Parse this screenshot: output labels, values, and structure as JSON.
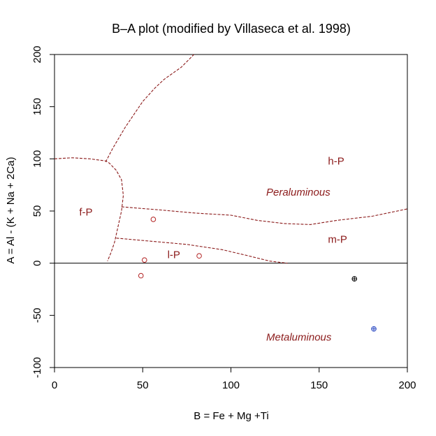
{
  "chart_data": {
    "type": "scatter",
    "title": "B–A plot (modified by Villaseca et al. 1998)",
    "xlabel": "B = Fe + Mg +Ti",
    "ylabel": "A = Al - (K + Na + 2Ca)",
    "xlim": [
      0,
      200
    ],
    "ylim": [
      -100,
      200
    ],
    "xticks": [
      0,
      50,
      100,
      150,
      200
    ],
    "yticks": [
      -100,
      -50,
      0,
      50,
      100,
      150,
      200
    ],
    "grid": false,
    "colors": {
      "boundary": "#8b1a1a",
      "label": "#8b1a1a",
      "points_red": "#b22222",
      "point_black": "#000000",
      "point_blue": "#1f3fbf",
      "axis": "#000000"
    },
    "field_labels": [
      {
        "text": "h-P",
        "x": 155,
        "y": 98,
        "italic": false
      },
      {
        "text": "Peraluminous",
        "x": 120,
        "y": 68,
        "italic": true
      },
      {
        "text": "f-P",
        "x": 14,
        "y": 49,
        "italic": false
      },
      {
        "text": "m-P",
        "x": 155,
        "y": 23,
        "italic": false
      },
      {
        "text": "l-P",
        "x": 64,
        "y": 8,
        "italic": false
      },
      {
        "text": "Metaluminous",
        "x": 120,
        "y": -71,
        "italic": true
      }
    ],
    "boundaries": [
      {
        "name": "upper",
        "points": [
          [
            29,
            97
          ],
          [
            33,
            110
          ],
          [
            40,
            130
          ],
          [
            50,
            155
          ],
          [
            57,
            168
          ],
          [
            62,
            176
          ],
          [
            72,
            188
          ],
          [
            79,
            200
          ]
        ]
      },
      {
        "name": "fP-left",
        "points": [
          [
            0,
            100
          ],
          [
            10,
            101
          ],
          [
            20,
            100
          ],
          [
            29,
            98
          ],
          [
            31,
            96
          ],
          [
            35,
            89
          ],
          [
            38,
            80
          ],
          [
            39,
            65
          ],
          [
            38,
            50
          ],
          [
            36,
            35
          ],
          [
            34,
            20
          ],
          [
            32,
            10
          ],
          [
            30,
            2
          ]
        ]
      },
      {
        "name": "mP-upper",
        "points": [
          [
            38,
            54
          ],
          [
            60,
            51
          ],
          [
            80,
            48
          ],
          [
            100,
            46
          ],
          [
            115,
            41
          ],
          [
            130,
            38
          ],
          [
            145,
            37
          ],
          [
            160,
            41
          ],
          [
            180,
            45
          ],
          [
            200,
            52
          ]
        ]
      },
      {
        "name": "lP-upper",
        "points": [
          [
            35,
            24
          ],
          [
            55,
            21
          ],
          [
            75,
            18
          ],
          [
            95,
            13
          ],
          [
            110,
            7
          ],
          [
            122,
            2
          ],
          [
            132,
            0
          ]
        ]
      }
    ],
    "series": [
      {
        "marker": "circle",
        "color": "red",
        "points": [
          [
            56,
            42
          ],
          [
            51,
            3
          ],
          [
            82,
            7
          ],
          [
            49,
            -12
          ]
        ]
      },
      {
        "marker": "circle-plus",
        "color": "black",
        "points": [
          [
            170,
            -15
          ]
        ]
      },
      {
        "marker": "circle-plus",
        "color": "blue",
        "points": [
          [
            181,
            -63
          ]
        ]
      }
    ],
    "reference_line": {
      "y": 0
    }
  }
}
